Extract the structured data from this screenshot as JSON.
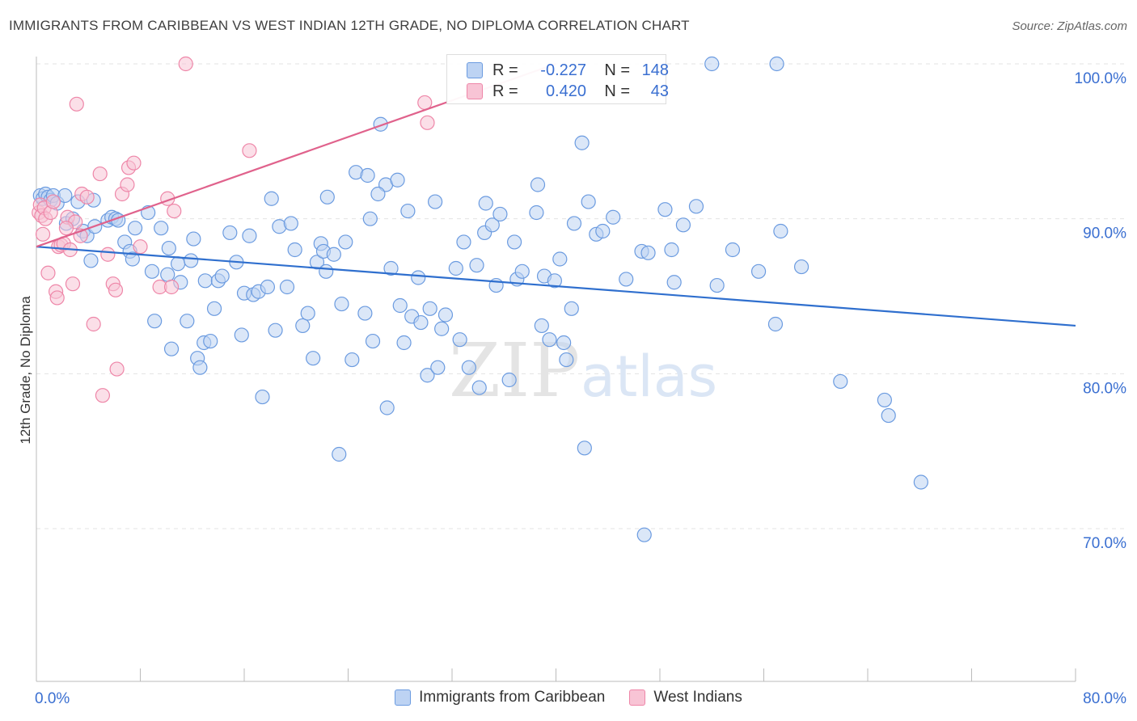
{
  "title": "IMMIGRANTS FROM CARIBBEAN VS WEST INDIAN 12TH GRADE, NO DIPLOMA CORRELATION CHART",
  "source": "Source: ZipAtlas.com",
  "watermark": {
    "zip": "ZIP",
    "atlas": "atlas"
  },
  "colors": {
    "blue": "#6b9be0",
    "blue_fill": "#bdd3f3",
    "blue_line": "#2f6fce",
    "pink": "#ee86a8",
    "pink_fill": "#f8c4d5",
    "pink_line": "#e0628c",
    "tick_text": "#3a6fd1",
    "grid": "#e3e3e3"
  },
  "legend": {
    "blue": {
      "r_label": "R =",
      "r_value": "-0.227",
      "n_label": "N =",
      "n_value": "148"
    },
    "pink": {
      "r_label": "R =",
      "r_value": "0.420",
      "n_label": "N =",
      "n_value": "43"
    }
  },
  "chart_data": {
    "type": "scatter",
    "title": "IMMIGRANTS FROM CARIBBEAN VS WEST INDIAN 12TH GRADE, NO DIPLOMA CORRELATION CHART",
    "xlabel": "",
    "ylabel": "12th Grade, No Diploma",
    "xlim": [
      0,
      80
    ],
    "ylim": [
      60,
      104
    ],
    "x_tick_labels": [
      "0.0%",
      "80.0%"
    ],
    "y_ticks": [
      70,
      80,
      90,
      100
    ],
    "y_tick_labels": [
      "70.0%",
      "80.0%",
      "90.0%",
      "100.0%"
    ],
    "grid": "horizontal dashed",
    "series": [
      {
        "name": "Immigrants from Caribbean",
        "color": "#6b9be0",
        "trend": {
          "x": [
            0,
            80
          ],
          "y": [
            88.2,
            83.1
          ]
        },
        "points": [
          [
            0.3,
            91.5
          ],
          [
            0.5,
            91.3
          ],
          [
            0.7,
            91.6
          ],
          [
            0.9,
            91.4
          ],
          [
            1.1,
            91.2
          ],
          [
            1.3,
            91.5
          ],
          [
            1.6,
            91.0
          ],
          [
            2.2,
            91.5
          ],
          [
            2.3,
            89.7
          ],
          [
            2.8,
            90.0
          ],
          [
            3.2,
            91.1
          ],
          [
            3.6,
            89.2
          ],
          [
            3.9,
            88.9
          ],
          [
            4.2,
            87.3
          ],
          [
            4.4,
            91.2
          ],
          [
            4.5,
            89.5
          ],
          [
            5.5,
            89.9
          ],
          [
            5.8,
            90.1
          ],
          [
            6.1,
            90.0
          ],
          [
            6.3,
            89.9
          ],
          [
            6.8,
            88.5
          ],
          [
            7.2,
            87.9
          ],
          [
            7.4,
            87.4
          ],
          [
            7.6,
            89.4
          ],
          [
            8.6,
            90.4
          ],
          [
            8.9,
            86.6
          ],
          [
            9.1,
            83.4
          ],
          [
            9.6,
            89.4
          ],
          [
            10.1,
            86.4
          ],
          [
            10.2,
            88.1
          ],
          [
            10.4,
            81.6
          ],
          [
            10.9,
            87.1
          ],
          [
            11.1,
            85.9
          ],
          [
            11.6,
            83.4
          ],
          [
            11.9,
            87.3
          ],
          [
            12.1,
            88.7
          ],
          [
            12.4,
            81.0
          ],
          [
            12.6,
            80.4
          ],
          [
            12.9,
            82.0
          ],
          [
            13.0,
            86.0
          ],
          [
            13.4,
            82.1
          ],
          [
            13.7,
            84.2
          ],
          [
            14.0,
            86.0
          ],
          [
            14.3,
            86.3
          ],
          [
            14.9,
            89.1
          ],
          [
            15.4,
            87.2
          ],
          [
            15.8,
            82.5
          ],
          [
            16.0,
            85.2
          ],
          [
            16.4,
            88.9
          ],
          [
            16.7,
            85.1
          ],
          [
            17.1,
            85.3
          ],
          [
            17.4,
            78.5
          ],
          [
            17.8,
            85.6
          ],
          [
            18.1,
            91.3
          ],
          [
            18.4,
            82.8
          ],
          [
            18.7,
            89.5
          ],
          [
            19.3,
            85.6
          ],
          [
            19.6,
            89.7
          ],
          [
            19.9,
            88.0
          ],
          [
            20.5,
            83.1
          ],
          [
            20.9,
            83.9
          ],
          [
            21.3,
            81.0
          ],
          [
            21.6,
            87.2
          ],
          [
            21.9,
            88.4
          ],
          [
            22.1,
            87.9
          ],
          [
            22.3,
            86.6
          ],
          [
            22.9,
            87.7
          ],
          [
            23.3,
            74.8
          ],
          [
            23.5,
            84.5
          ],
          [
            23.8,
            88.5
          ],
          [
            24.3,
            80.9
          ],
          [
            24.6,
            93.0
          ],
          [
            25.3,
            83.9
          ],
          [
            25.5,
            92.8
          ],
          [
            25.7,
            90.0
          ],
          [
            25.9,
            82.1
          ],
          [
            26.5,
            96.1
          ],
          [
            26.9,
            92.2
          ],
          [
            27.0,
            77.8
          ],
          [
            27.3,
            86.8
          ],
          [
            27.8,
            92.5
          ],
          [
            28.0,
            84.4
          ],
          [
            28.3,
            82.0
          ],
          [
            28.6,
            90.5
          ],
          [
            28.9,
            83.7
          ],
          [
            29.4,
            86.2
          ],
          [
            29.6,
            83.3
          ],
          [
            30.1,
            79.9
          ],
          [
            30.3,
            84.2
          ],
          [
            30.7,
            91.1
          ],
          [
            30.9,
            80.4
          ],
          [
            31.2,
            82.9
          ],
          [
            31.5,
            83.8
          ],
          [
            32.3,
            86.8
          ],
          [
            32.6,
            82.2
          ],
          [
            32.9,
            88.5
          ],
          [
            33.3,
            80.4
          ],
          [
            33.9,
            87.0
          ],
          [
            34.1,
            79.1
          ],
          [
            34.5,
            89.1
          ],
          [
            35.1,
            89.6
          ],
          [
            35.4,
            85.7
          ],
          [
            35.7,
            90.3
          ],
          [
            36.4,
            79.6
          ],
          [
            36.8,
            88.5
          ],
          [
            37.0,
            86.1
          ],
          [
            37.4,
            86.6
          ],
          [
            38.5,
            90.4
          ],
          [
            38.6,
            92.2
          ],
          [
            38.9,
            83.1
          ],
          [
            39.1,
            86.3
          ],
          [
            39.5,
            82.2
          ],
          [
            39.9,
            86.0
          ],
          [
            40.6,
            82.0
          ],
          [
            40.8,
            80.9
          ],
          [
            41.2,
            84.2
          ],
          [
            41.4,
            89.7
          ],
          [
            42.0,
            94.9
          ],
          [
            42.2,
            75.2
          ],
          [
            42.5,
            91.1
          ],
          [
            43.1,
            89.0
          ],
          [
            43.6,
            89.2
          ],
          [
            44.4,
            90.1
          ],
          [
            45.4,
            86.1
          ],
          [
            46.6,
            87.9
          ],
          [
            46.8,
            69.6
          ],
          [
            47.1,
            87.8
          ],
          [
            48.4,
            90.6
          ],
          [
            48.9,
            88.0
          ],
          [
            49.1,
            85.9
          ],
          [
            49.8,
            89.6
          ],
          [
            50.8,
            90.8
          ],
          [
            52.0,
            100.0
          ],
          [
            52.4,
            85.7
          ],
          [
            53.6,
            88.0
          ],
          [
            55.6,
            86.6
          ],
          [
            56.9,
            83.2
          ],
          [
            57.3,
            89.2
          ],
          [
            58.9,
            86.9
          ],
          [
            61.9,
            79.5
          ],
          [
            65.3,
            78.3
          ],
          [
            65.6,
            77.3
          ],
          [
            68.1,
            73.0
          ],
          [
            57.0,
            100.0
          ],
          [
            26.3,
            91.6
          ],
          [
            34.6,
            91.0
          ],
          [
            40.3,
            87.4
          ],
          [
            22.4,
            91.4
          ]
        ]
      },
      {
        "name": "West Indians",
        "color": "#ee86a8",
        "trend": {
          "x": [
            0,
            40
          ],
          "y": [
            88.2,
            100.0
          ]
        },
        "points": [
          [
            0.2,
            90.4
          ],
          [
            0.3,
            90.9
          ],
          [
            0.4,
            90.2
          ],
          [
            0.5,
            89.0
          ],
          [
            0.6,
            90.7
          ],
          [
            0.7,
            90.0
          ],
          [
            0.9,
            86.5
          ],
          [
            1.1,
            90.4
          ],
          [
            1.5,
            85.3
          ],
          [
            1.6,
            84.9
          ],
          [
            1.7,
            88.2
          ],
          [
            1.9,
            88.3
          ],
          [
            2.1,
            88.4
          ],
          [
            2.4,
            90.1
          ],
          [
            2.6,
            88.0
          ],
          [
            2.8,
            85.8
          ],
          [
            3.0,
            89.8
          ],
          [
            3.1,
            97.4
          ],
          [
            3.4,
            88.9
          ],
          [
            3.5,
            91.6
          ],
          [
            3.9,
            91.4
          ],
          [
            4.4,
            83.2
          ],
          [
            4.9,
            92.9
          ],
          [
            5.1,
            78.6
          ],
          [
            5.5,
            87.7
          ],
          [
            5.9,
            85.8
          ],
          [
            6.1,
            85.4
          ],
          [
            6.2,
            80.3
          ],
          [
            6.6,
            91.6
          ],
          [
            7.0,
            92.2
          ],
          [
            7.1,
            93.3
          ],
          [
            7.5,
            93.6
          ],
          [
            8.0,
            88.2
          ],
          [
            9.5,
            85.6
          ],
          [
            10.1,
            91.3
          ],
          [
            10.4,
            85.6
          ],
          [
            10.6,
            90.5
          ],
          [
            11.5,
            100.0
          ],
          [
            16.4,
            94.4
          ],
          [
            29.9,
            97.5
          ],
          [
            30.1,
            96.2
          ],
          [
            1.3,
            91.1
          ],
          [
            2.3,
            89.4
          ]
        ]
      }
    ]
  },
  "legend_bottom": [
    {
      "label": "Immigrants from Caribbean"
    },
    {
      "label": "West Indians"
    }
  ]
}
